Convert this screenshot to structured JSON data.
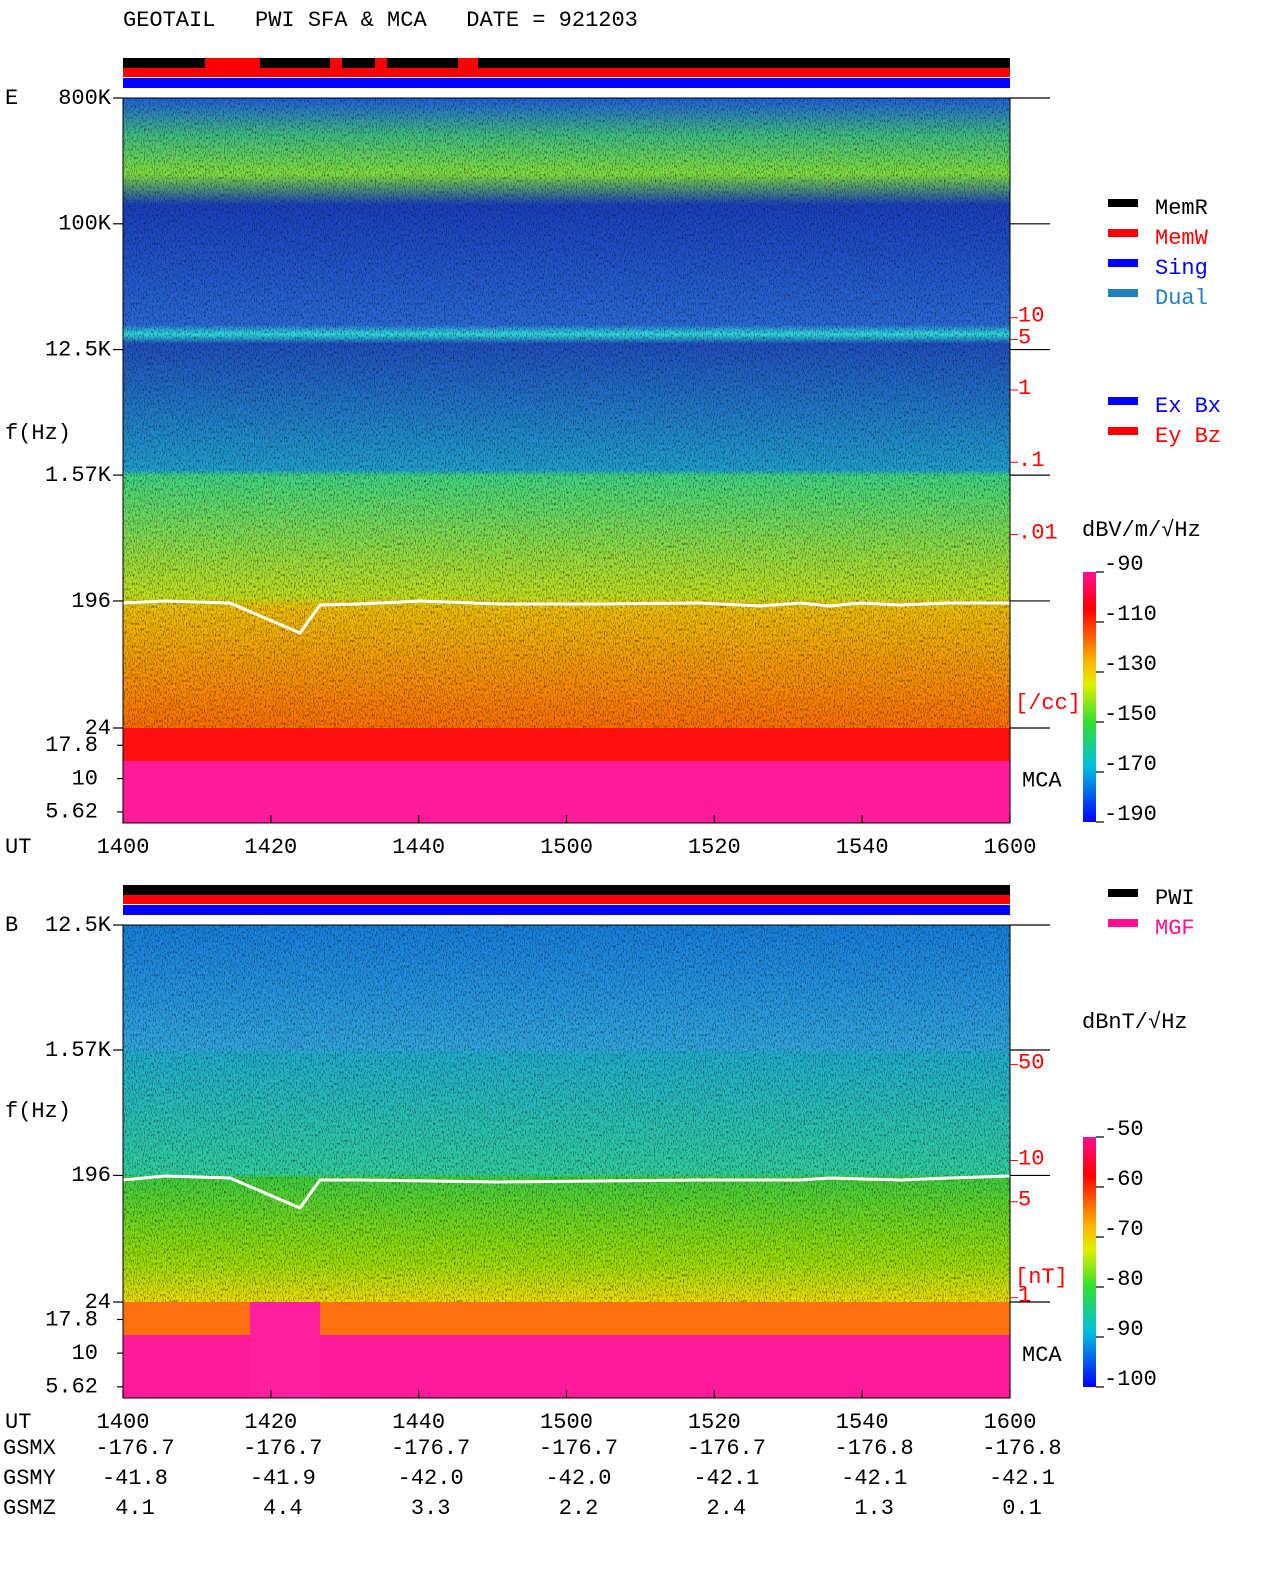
{
  "title": "GEOTAIL   PWI SFA & MCA   DATE = 921203",
  "chart_data": [
    {
      "type": "spectrogram",
      "panel_label": "E",
      "ylabel": "f(Hz)",
      "xlabel": "UT",
      "log_y": true,
      "ylim": [
        24,
        800000
      ],
      "yticks": [
        {
          "value": 800000,
          "label": "800K"
        },
        {
          "value": 100000,
          "label": "100K"
        },
        {
          "value": 12500,
          "label": "12.5K"
        },
        {
          "value": 1570,
          "label": "1.57K"
        },
        196,
        24
      ],
      "mca_ylim": [
        4.64,
        24
      ],
      "mca_yticks": [
        17.8,
        10,
        5.62
      ],
      "mca_label": "MCA",
      "categories": [
        "1400",
        "1420",
        "1440",
        "1500",
        "1520",
        "1540",
        "1600"
      ],
      "y2lim": [
        2.1e-05,
        11000
      ],
      "y2_color": "#ff0000",
      "y2ticks": [
        10,
        5,
        1,
        {
          "value": 0.1,
          "label": ".1"
        },
        {
          "value": 0.01,
          "label": ".01"
        }
      ],
      "y2label": "[/cc]",
      "colorbar_label": "dBV/m/√Hz",
      "clim": [
        -190,
        -90
      ],
      "cticks": [
        -90,
        -110,
        -130,
        -150,
        -170,
        -190
      ],
      "legends": [
        [
          {
            "name": "MemR",
            "color": "#000000"
          },
          {
            "name": "MemW",
            "color": "#ff0000"
          },
          {
            "name": "Sing",
            "color": "#0000ff"
          },
          {
            "name": "Dual",
            "color": "#2080c0"
          }
        ],
        [
          {
            "name": "Ex Bx",
            "color": "#0000ff"
          },
          {
            "name": "Ey Bz",
            "color": "#ff0000"
          }
        ]
      ]
    },
    {
      "type": "spectrogram",
      "panel_label": "B",
      "ylabel": "f(Hz)",
      "xlabel": "UT",
      "log_y": true,
      "ylim": [
        24,
        12500
      ],
      "yticks": [
        {
          "value": 12500,
          "label": "12.5K"
        },
        {
          "value": 1570,
          "label": "1.57K"
        },
        196,
        24
      ],
      "mca_ylim": [
        4.64,
        24
      ],
      "mca_yticks": [
        17.8,
        10,
        5.62
      ],
      "mca_label": "MCA",
      "categories": [
        "1400",
        "1420",
        "1440",
        "1500",
        "1520",
        "1540",
        "1600"
      ],
      "y2lim": [
        0.93,
        520
      ],
      "y2_color": "#ff0000",
      "y2ticks": [
        50,
        10,
        5,
        1
      ],
      "y2label": "[nT]",
      "colorbar_label": "dBnT/√Hz",
      "clim": [
        -100,
        -50
      ],
      "cticks": [
        -50,
        -60,
        -70,
        -80,
        -90,
        -100
      ],
      "legends": [
        [
          {
            "name": "PWI",
            "color": "#000000"
          },
          {
            "name": "MGF",
            "color": "#ff1090"
          }
        ]
      ]
    }
  ],
  "orbit": {
    "row_labels": [
      "GSMX",
      "GSMY",
      "GSMZ"
    ],
    "rows": [
      [
        -176.7,
        -176.7,
        -176.7,
        -176.7,
        -176.7,
        -176.8,
        -176.8
      ],
      [
        -41.8,
        -41.9,
        {
          "value": -42.0,
          "label": "-42.0"
        },
        {
          "value": -42.0,
          "label": "-42.0"
        },
        -42.1,
        -42.1,
        -42.1
      ],
      [
        4.1,
        4.4,
        3.3,
        2.2,
        2.4,
        1.3,
        0.1
      ]
    ]
  }
}
